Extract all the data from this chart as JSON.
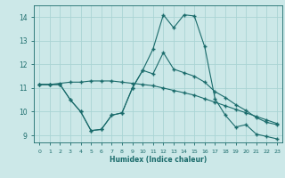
{
  "title": "",
  "xlabel": "Humidex (Indice chaleur)",
  "bg_color": "#cce8e8",
  "line_color": "#1a6b6b",
  "grid_color": "#aad4d4",
  "xlim": [
    -0.5,
    23.5
  ],
  "ylim": [
    8.7,
    14.5
  ],
  "yticks": [
    9,
    10,
    11,
    12,
    13,
    14
  ],
  "xticks": [
    0,
    1,
    2,
    3,
    4,
    5,
    6,
    7,
    8,
    9,
    10,
    11,
    12,
    13,
    14,
    15,
    16,
    17,
    18,
    19,
    20,
    21,
    22,
    23
  ],
  "line1_x": [
    0,
    1,
    2,
    3,
    4,
    5,
    6,
    7,
    8,
    9,
    10,
    11,
    12,
    13,
    14,
    15,
    16,
    17,
    18,
    19,
    20,
    21,
    22,
    23
  ],
  "line1_y": [
    11.15,
    11.15,
    11.2,
    11.25,
    11.25,
    11.3,
    11.3,
    11.3,
    11.25,
    11.2,
    11.15,
    11.1,
    11.0,
    10.9,
    10.8,
    10.7,
    10.55,
    10.4,
    10.25,
    10.1,
    9.95,
    9.8,
    9.65,
    9.5
  ],
  "line2_x": [
    0,
    1,
    2,
    3,
    4,
    5,
    6,
    7,
    8,
    9,
    10,
    11,
    12,
    13,
    14,
    15,
    16,
    17,
    18,
    19,
    20,
    21,
    22,
    23
  ],
  "line2_y": [
    11.15,
    11.15,
    11.15,
    10.5,
    10.0,
    9.2,
    9.25,
    9.85,
    9.95,
    11.0,
    11.75,
    12.65,
    14.1,
    13.55,
    14.1,
    14.05,
    12.75,
    10.55,
    9.85,
    9.35,
    9.45,
    9.05,
    8.95,
    8.85
  ],
  "line3_x": [
    0,
    1,
    2,
    3,
    4,
    5,
    6,
    7,
    8,
    9,
    10,
    11,
    12,
    13,
    14,
    15,
    16,
    17,
    18,
    19,
    20,
    21,
    22,
    23
  ],
  "line3_y": [
    11.15,
    11.15,
    11.15,
    10.5,
    10.0,
    9.2,
    9.25,
    9.85,
    9.95,
    11.0,
    11.75,
    11.6,
    12.5,
    11.8,
    11.65,
    11.5,
    11.25,
    10.85,
    10.6,
    10.3,
    10.05,
    9.75,
    9.55,
    9.45
  ],
  "marker": "+",
  "markersize": 3,
  "linewidth": 0.8
}
